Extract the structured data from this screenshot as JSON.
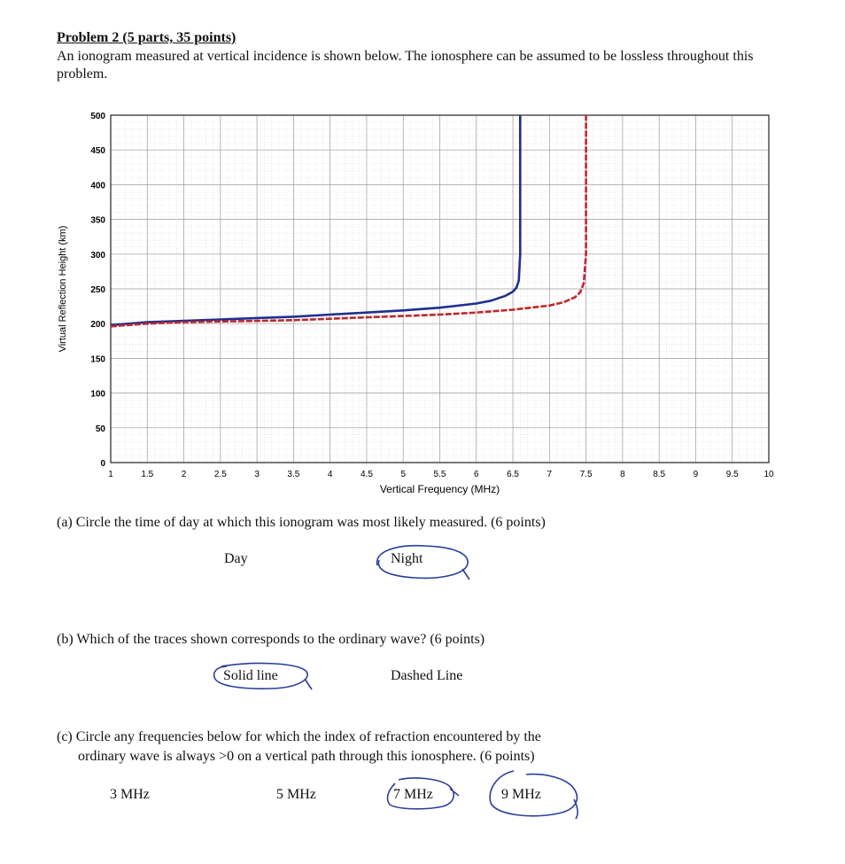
{
  "problem": {
    "heading": "Problem 2 (5 parts, 35 points)",
    "intro": "An ionogram measured at vertical incidence is shown below. The ionosphere can be assumed to be lossless throughout this problem."
  },
  "chart_data": {
    "type": "line",
    "xlabel": "Vertical Frequency (MHz)",
    "ylabel": "Virtual Reflection Height (km)",
    "xlim": [
      1,
      10
    ],
    "ylim": [
      0,
      500
    ],
    "xticks": [
      "1",
      "1.5",
      "2",
      "2.5",
      "3",
      "3.5",
      "4",
      "4.5",
      "5",
      "5.5",
      "6",
      "6.5",
      "7",
      "7.5",
      "8",
      "8.5",
      "9",
      "9.5",
      "10"
    ],
    "yticks": [
      "0",
      "50",
      "100",
      "150",
      "200",
      "250",
      "300",
      "350",
      "400",
      "450",
      "500"
    ],
    "grid": true,
    "series": [
      {
        "style": "solid",
        "color": "#1f2f8f",
        "x": [
          1,
          1.5,
          2,
          2.5,
          3,
          3.5,
          4,
          4.5,
          5,
          5.5,
          6,
          6.2,
          6.4,
          6.5,
          6.55,
          6.58,
          6.6,
          6.6
        ],
        "y": [
          198,
          202,
          204,
          206,
          208,
          210,
          213,
          216,
          219,
          223,
          229,
          233,
          240,
          246,
          252,
          262,
          300,
          500
        ]
      },
      {
        "style": "dashed",
        "color": "#c0262c",
        "x": [
          1,
          1.5,
          2,
          2.5,
          3,
          3.5,
          4,
          4.5,
          5,
          5.5,
          6,
          6.5,
          7,
          7.2,
          7.35,
          7.42,
          7.47,
          7.5,
          7.5
        ],
        "y": [
          196,
          200,
          202,
          203,
          204,
          205,
          207,
          209,
          211,
          213,
          216,
          220,
          226,
          231,
          238,
          245,
          258,
          300,
          500
        ]
      }
    ]
  },
  "parts": {
    "a": {
      "question": "(a) Circle the time of day at which this ionogram was most likely measured. (6 points)",
      "options": [
        "Day",
        "Night"
      ],
      "circled": [
        "Night"
      ]
    },
    "b": {
      "question": "(b) Which of the traces shown corresponds to the ordinary wave? (6 points)",
      "options": [
        "Solid line",
        "Dashed Line"
      ],
      "circled": [
        "Solid line"
      ]
    },
    "c": {
      "question_line1": "(c) Circle any frequencies below for which the index of refraction encountered by the",
      "question_line2": "ordinary wave is always >0 on a vertical path through this ionosphere. (6 points)",
      "options": [
        "3 MHz",
        "5 MHz",
        "7 MHz",
        "9 MHz"
      ],
      "circled": [
        "7 MHz",
        "9 MHz"
      ]
    }
  },
  "colors": {
    "ink": "#2b3d9a",
    "grid": "#9a9a9a"
  }
}
